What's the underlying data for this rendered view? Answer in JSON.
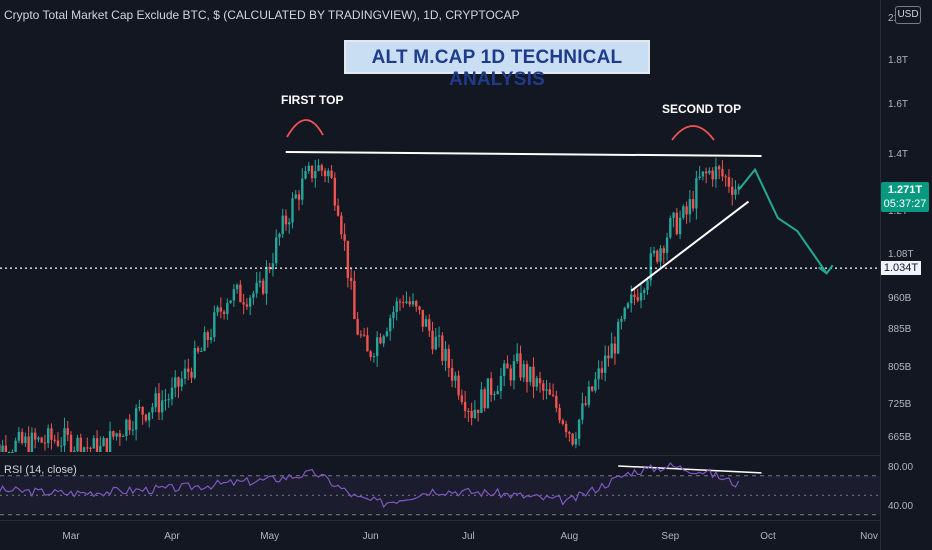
{
  "header": {
    "title": "Crypto Total Market Cap Exclude BTC, $ (CALCULATED BY TRADINGVIEW), 1D, CRYPTOCAP"
  },
  "banner": {
    "text": "ALT M.CAP 1D TECHNICAL ANALYSIS"
  },
  "annotations": {
    "first_top": "FIRST TOP",
    "second_top": "SECOND TOP"
  },
  "currency_button": "USD",
  "last_price": {
    "value": "1.271T",
    "countdown": "05:37:27"
  },
  "level_label": "1.034T",
  "rsi": {
    "label": "RSI (14, close)",
    "upper": "80.00",
    "lower": "40.00"
  },
  "colors": {
    "up": "#26a69a",
    "down": "#ef5350",
    "rsi_line": "#7e57c2",
    "projection": "#22ab94",
    "background": "#131722"
  },
  "chart_data": {
    "type": "candlestick",
    "title": "Crypto Total Market Cap Exclude BTC, $ (CALCULATED BY TRADINGVIEW), 1D, CRYPTOCAP",
    "y_scale": "log",
    "ylim": [
      "630B",
      "2.1T"
    ],
    "y_ticks": [
      "21",
      "1.8T",
      "1.6T",
      "1.4T",
      "1.2T",
      "1.08T",
      "960B",
      "885B",
      "805B",
      "725B",
      "665B"
    ],
    "x_ticks": [
      "Mar",
      "Apr",
      "May",
      "Jun",
      "Jul",
      "Aug",
      "Sep",
      "Oct",
      "Nov"
    ],
    "series": [
      {
        "name": "close_path",
        "points": [
          [
            "Feb 2",
            640
          ],
          [
            "Feb 25",
            660
          ],
          [
            "Mar 10",
            640
          ],
          [
            "Mar 20",
            700
          ],
          [
            "Apr 1",
            740
          ],
          [
            "Apr 10",
            830
          ],
          [
            "Apr 18",
            960
          ],
          [
            "Apr 28",
            970
          ],
          [
            "May 5",
            1150
          ],
          [
            "May 10",
            1270
          ],
          [
            "May 15",
            1350
          ],
          [
            "May 19",
            1330
          ],
          [
            "May 22",
            1230
          ],
          [
            "May 27",
            900
          ],
          [
            "May 31",
            820
          ],
          [
            "Jun 6",
            900
          ],
          [
            "Jun 11",
            960
          ],
          [
            "Jun 18",
            890
          ],
          [
            "Jun 25",
            800
          ],
          [
            "Jul 2",
            710
          ],
          [
            "Jul 10",
            770
          ],
          [
            "Jul 16",
            800
          ],
          [
            "Jul 22",
            760
          ],
          [
            "Jul 29",
            710
          ],
          [
            "Aug 2",
            665
          ],
          [
            "Aug 8",
            750
          ],
          [
            "Aug 15",
            850
          ],
          [
            "Aug 21",
            960
          ],
          [
            "Aug 28",
            1080
          ],
          [
            "Sep 1",
            1150
          ],
          [
            "Sep 6",
            1190
          ],
          [
            "Sep 10",
            1300
          ],
          [
            "Sep 14",
            1340
          ],
          [
            "Sep 19",
            1300
          ],
          [
            "Sep 22",
            1271
          ]
        ]
      },
      {
        "name": "RSI (14, close)",
        "points": [
          [
            "Feb 2",
            56
          ],
          [
            "Mar 1",
            52
          ],
          [
            "Apr 1",
            57
          ],
          [
            "May 1",
            66
          ],
          [
            "May 15",
            73
          ],
          [
            "May 28",
            47
          ],
          [
            "Jun 5",
            42
          ],
          [
            "Jun 20",
            55
          ],
          [
            "Jul 10",
            52
          ],
          [
            "Aug 1",
            44
          ],
          [
            "Aug 20",
            74
          ],
          [
            "Sep 1",
            80
          ],
          [
            "Sep 12",
            74
          ],
          [
            "Sep 22",
            61
          ]
        ]
      }
    ],
    "annotations": [
      "FIRST TOP",
      "SECOND TOP"
    ],
    "reference_levels": [
      {
        "label": "1.034T",
        "value": 1034
      }
    ],
    "drawings": [
      {
        "type": "resistance",
        "from": [
          "May 5",
          1400
        ],
        "to": [
          "Sep 29",
          1400
        ]
      },
      {
        "type": "support",
        "from": [
          "Aug 20",
          1000
        ],
        "to": [
          "Sep 25",
          1200
        ]
      },
      {
        "type": "projection",
        "path": [
          [
            "Sep 22",
            1271
          ],
          [
            "Sep 27",
            1340
          ],
          [
            "Oct 4",
            1180
          ],
          [
            "Oct 10",
            1140
          ],
          [
            "Oct 19",
            1020
          ]
        ]
      },
      {
        "type": "rsi_divergence",
        "from": [
          "Aug 16",
          80
        ],
        "to": [
          "Sep 29",
          73
        ]
      }
    ],
    "grid": false
  }
}
